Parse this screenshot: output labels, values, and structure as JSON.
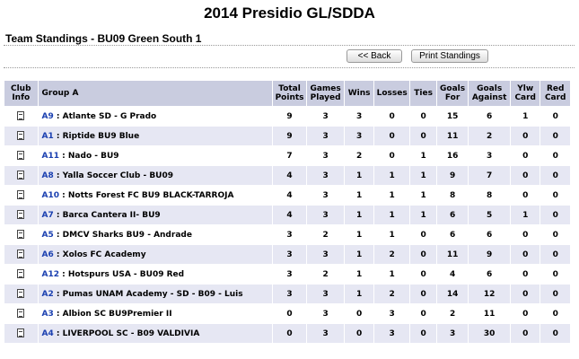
{
  "page": {
    "title": "2014 Presidio GL/SDDA",
    "subtitle": "Team Standings - BU09 Green South 1"
  },
  "buttons": {
    "back": "<< Back",
    "print": "Print Standings"
  },
  "table": {
    "headers": {
      "club": [
        "Club",
        "Info"
      ],
      "group": "Group A",
      "points": [
        "Total",
        "Points"
      ],
      "played": [
        "Games",
        "Played"
      ],
      "wins": "Wins",
      "losses": "Losses",
      "ties": "Ties",
      "gf": [
        "Goals",
        "For"
      ],
      "ga": [
        "Goals",
        "Against"
      ],
      "ylw": [
        "Ylw",
        "Card"
      ],
      "red": [
        "Red",
        "Card"
      ]
    },
    "club_icon": "document-icon",
    "rows": [
      {
        "code": "A9",
        "name": "Atlante SD - G Prado",
        "points": "9",
        "played": "3",
        "wins": "3",
        "losses": "0",
        "ties": "0",
        "gf": "15",
        "ga": "6",
        "ylw": "1",
        "red": "0"
      },
      {
        "code": "A1",
        "name": "Riptide BU9 Blue",
        "points": "9",
        "played": "3",
        "wins": "3",
        "losses": "0",
        "ties": "0",
        "gf": "11",
        "ga": "2",
        "ylw": "0",
        "red": "0"
      },
      {
        "code": "A11",
        "name": "Nado - BU9",
        "points": "7",
        "played": "3",
        "wins": "2",
        "losses": "0",
        "ties": "1",
        "gf": "16",
        "ga": "3",
        "ylw": "0",
        "red": "0"
      },
      {
        "code": "A8",
        "name": "Yalla Soccer Club - BU09",
        "points": "4",
        "played": "3",
        "wins": "1",
        "losses": "1",
        "ties": "1",
        "gf": "9",
        "ga": "7",
        "ylw": "0",
        "red": "0"
      },
      {
        "code": "A10",
        "name": "Notts Forest FC BU9 BLACK-TARROJA",
        "points": "4",
        "played": "3",
        "wins": "1",
        "losses": "1",
        "ties": "1",
        "gf": "8",
        "ga": "8",
        "ylw": "0",
        "red": "0"
      },
      {
        "code": "A7",
        "name": "Barca Cantera II- BU9",
        "points": "4",
        "played": "3",
        "wins": "1",
        "losses": "1",
        "ties": "1",
        "gf": "6",
        "ga": "5",
        "ylw": "1",
        "red": "0"
      },
      {
        "code": "A5",
        "name": "DMCV Sharks BU9 - Andrade",
        "points": "3",
        "played": "2",
        "wins": "1",
        "losses": "1",
        "ties": "0",
        "gf": "6",
        "ga": "6",
        "ylw": "0",
        "red": "0"
      },
      {
        "code": "A6",
        "name": "Xolos FC Academy",
        "points": "3",
        "played": "3",
        "wins": "1",
        "losses": "2",
        "ties": "0",
        "gf": "11",
        "ga": "9",
        "ylw": "0",
        "red": "0"
      },
      {
        "code": "A12",
        "name": "Hotspurs USA - BU09 Red",
        "points": "3",
        "played": "2",
        "wins": "1",
        "losses": "1",
        "ties": "0",
        "gf": "4",
        "ga": "6",
        "ylw": "0",
        "red": "0"
      },
      {
        "code": "A2",
        "name": "Pumas UNAM Academy - SD - B09 - Luis",
        "points": "3",
        "played": "3",
        "wins": "1",
        "losses": "2",
        "ties": "0",
        "gf": "14",
        "ga": "12",
        "ylw": "0",
        "red": "0"
      },
      {
        "code": "A3",
        "name": "Albion SC BU9Premier II",
        "points": "0",
        "played": "3",
        "wins": "0",
        "losses": "3",
        "ties": "0",
        "gf": "2",
        "ga": "11",
        "ylw": "0",
        "red": "0"
      },
      {
        "code": "A4",
        "name": "LIVERPOOL SC - B09 VALDIVIA",
        "points": "0",
        "played": "3",
        "wins": "0",
        "losses": "3",
        "ties": "0",
        "gf": "3",
        "ga": "30",
        "ylw": "0",
        "red": "0"
      }
    ]
  }
}
